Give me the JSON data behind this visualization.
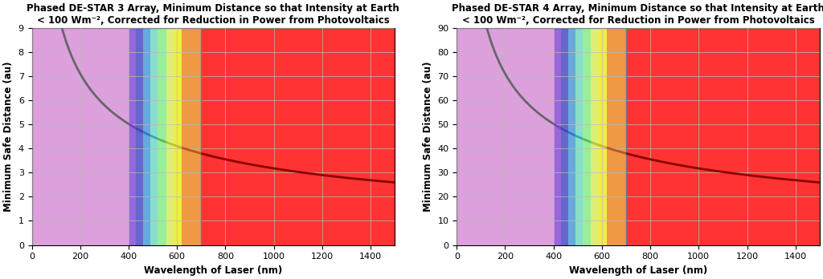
{
  "plots": [
    {
      "title_line1": "Phased DE-STAR 3 Array, Minimum Distance so that Intensity at Earth",
      "title_line2": "< 100 Wm⁻², Corrected for Reduction in Power from Photovoltaics",
      "ylabel": "Minimum Safe Distance (au)",
      "xlabel": "Wavelength of Laser (nm)",
      "ylim": [
        0,
        9
      ],
      "yticks": [
        0,
        1,
        2,
        3,
        4,
        5,
        6,
        7,
        8,
        9
      ],
      "curve_const": 100.4
    },
    {
      "title_line1": "Phased DE-STAR 4 Array, Minimum Distance so that Intensity at Earth",
      "title_line2": "< 100 Wm⁻², Corrected for Reduction in Power from Photovoltaics",
      "ylabel": "Minimum Safe Distance (au)",
      "xlabel": "Wavelength of Laser (nm)",
      "ylim": [
        0,
        90
      ],
      "yticks": [
        0,
        10,
        20,
        30,
        40,
        50,
        60,
        70,
        80,
        90
      ],
      "curve_const": 1004.0
    }
  ],
  "xlim": [
    0,
    1500
  ],
  "xticks": [
    0,
    200,
    400,
    600,
    800,
    1000,
    1200,
    1400
  ],
  "vline_x": 700,
  "vline_color": "#6677aa",
  "uv_color": "#dda0dd",
  "ir_color": "#ff3333",
  "spectrum_bands": [
    {
      "xmin": 400,
      "xmax": 430,
      "color": "#9966dd"
    },
    {
      "xmin": 430,
      "xmax": 460,
      "color": "#6666cc"
    },
    {
      "xmin": 460,
      "xmax": 490,
      "color": "#66aadd"
    },
    {
      "xmin": 490,
      "xmax": 520,
      "color": "#88ddcc"
    },
    {
      "xmin": 520,
      "xmax": 555,
      "color": "#99ee99"
    },
    {
      "xmin": 555,
      "xmax": 585,
      "color": "#ddee77"
    },
    {
      "xmin": 585,
      "xmax": 620,
      "color": "#eeee44"
    },
    {
      "xmin": 620,
      "xmax": 700,
      "color": "#ee9944"
    }
  ],
  "curve_segments": [
    {
      "xmin": 0,
      "xmax": 400,
      "color": "#666666"
    },
    {
      "xmin": 400,
      "xmax": 430,
      "color": "#7744bb"
    },
    {
      "xmin": 430,
      "xmax": 460,
      "color": "#4444bb"
    },
    {
      "xmin": 460,
      "xmax": 490,
      "color": "#3377cc"
    },
    {
      "xmin": 490,
      "xmax": 520,
      "color": "#33aaaa"
    },
    {
      "xmin": 520,
      "xmax": 555,
      "color": "#55bb55"
    },
    {
      "xmin": 555,
      "xmax": 585,
      "color": "#aacc33"
    },
    {
      "xmin": 585,
      "xmax": 620,
      "color": "#ccbb22"
    },
    {
      "xmin": 620,
      "xmax": 700,
      "color": "#bb5522"
    },
    {
      "xmin": 700,
      "xmax": 1500,
      "color": "#8b0000"
    }
  ],
  "grid_color": "#bbbbbb",
  "background_color": "#ffffff",
  "title_fontsize": 8.5,
  "axis_label_fontsize": 8.5,
  "tick_fontsize": 8
}
